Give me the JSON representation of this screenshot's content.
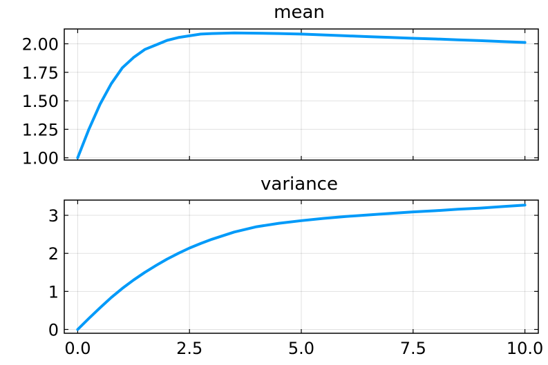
{
  "chart_data": [
    {
      "type": "line",
      "title": "mean",
      "xlabel": "",
      "ylabel": "",
      "xlim": [
        -0.3,
        10.3
      ],
      "ylim": [
        0.98,
        2.13
      ],
      "yticks": [
        "1.00",
        "1.25",
        "1.50",
        "1.75",
        "2.00"
      ],
      "ytick_values": [
        1.0,
        1.25,
        1.5,
        1.75,
        2.0
      ],
      "xticks": [],
      "xtick_values": [
        0,
        2.5,
        5,
        7.5,
        10
      ],
      "grid": true,
      "series": [
        {
          "color": "#009af9",
          "x": [
            0,
            0.25,
            0.5,
            0.75,
            1.0,
            1.25,
            1.5,
            1.75,
            2.0,
            2.25,
            2.5,
            2.75,
            3.0,
            3.5,
            4.0,
            4.5,
            5.0,
            5.5,
            6.0,
            6.5,
            7.0,
            7.5,
            8.0,
            8.5,
            9.0,
            9.5,
            10.0
          ],
          "y": [
            1.0,
            1.25,
            1.47,
            1.65,
            1.79,
            1.88,
            1.95,
            1.99,
            2.03,
            2.055,
            2.07,
            2.085,
            2.09,
            2.095,
            2.093,
            2.09,
            2.085,
            2.078,
            2.07,
            2.063,
            2.056,
            2.048,
            2.042,
            2.035,
            2.028,
            2.02,
            2.012
          ]
        }
      ]
    },
    {
      "type": "line",
      "title": "variance",
      "xlabel": "",
      "ylabel": "",
      "xlim": [
        -0.3,
        10.3
      ],
      "ylim": [
        -0.1,
        3.4
      ],
      "yticks": [
        "0",
        "1",
        "2",
        "3"
      ],
      "ytick_values": [
        0,
        1,
        2,
        3
      ],
      "xticks": [
        "0.0",
        "2.5",
        "5.0",
        "7.5",
        "10.0"
      ],
      "xtick_values": [
        0,
        2.5,
        5,
        7.5,
        10
      ],
      "grid": true,
      "series": [
        {
          "color": "#009af9",
          "x": [
            0,
            0.25,
            0.5,
            0.75,
            1.0,
            1.25,
            1.5,
            1.75,
            2.0,
            2.25,
            2.5,
            2.75,
            3.0,
            3.5,
            4.0,
            4.5,
            5.0,
            5.5,
            6.0,
            6.5,
            7.0,
            7.5,
            8.0,
            8.5,
            9.0,
            9.5,
            10.0
          ],
          "y": [
            0.0,
            0.29,
            0.57,
            0.84,
            1.08,
            1.3,
            1.5,
            1.68,
            1.85,
            2.0,
            2.14,
            2.26,
            2.37,
            2.56,
            2.7,
            2.79,
            2.86,
            2.92,
            2.97,
            3.01,
            3.05,
            3.09,
            3.12,
            3.16,
            3.19,
            3.23,
            3.27
          ]
        }
      ]
    }
  ]
}
